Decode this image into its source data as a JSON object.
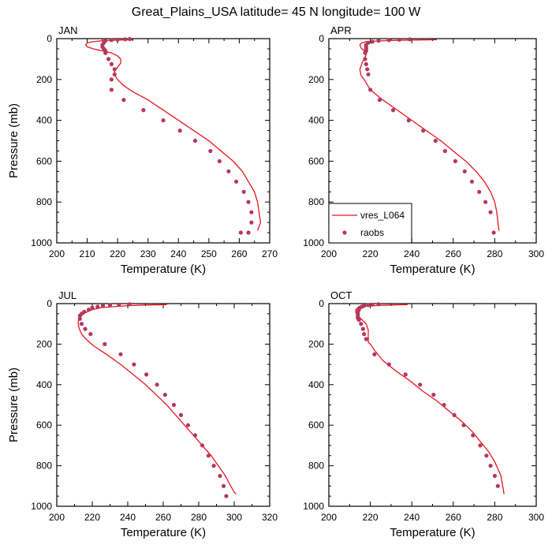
{
  "title": "Great_Plains_USA  latitude= 45 N longitude= 100 W",
  "colors": {
    "model": "#e8161c",
    "obs": "#b5385f",
    "axis": "#000000"
  },
  "legend": {
    "model_label": "vres_L064",
    "obs_label": "raobs"
  },
  "chart_data": [
    {
      "type": "line",
      "panel": "JAN",
      "xlabel": "Temperature (K)",
      "ylabel": "Pressure (mb)",
      "xlim": [
        200,
        270
      ],
      "ylim": [
        0,
        1000
      ],
      "y_inverted": false,
      "xticks": [
        200,
        210,
        220,
        230,
        240,
        250,
        260,
        270
      ],
      "yticks": [
        0,
        200,
        400,
        600,
        800,
        1000
      ],
      "series": [
        {
          "name": "vres_L064",
          "kind": "line",
          "x": [
            225,
            220,
            215,
            212,
            210,
            209.5,
            210,
            212,
            215,
            218,
            220,
            221,
            221,
            220,
            219,
            219,
            220,
            222,
            225,
            230,
            235,
            240,
            245,
            250,
            254,
            258,
            261,
            263,
            265,
            266,
            266.5,
            267,
            266
          ],
          "y": [
            5,
            7,
            10,
            15,
            20,
            30,
            40,
            50,
            60,
            70,
            85,
            100,
            120,
            140,
            160,
            180,
            200,
            230,
            260,
            300,
            350,
            400,
            450,
            500,
            550,
            600,
            650,
            700,
            750,
            800,
            850,
            900,
            940
          ]
        },
        {
          "name": "raobs",
          "kind": "scatter",
          "x": [
            224,
            222.5,
            220,
            218,
            216,
            215.5,
            215,
            215,
            215.5,
            216,
            216,
            217,
            218,
            219,
            219,
            218,
            218,
            222,
            228.5,
            235,
            240.5,
            245.5,
            250.5,
            253.5,
            256.5,
            259,
            261.5,
            263,
            264,
            264,
            263,
            260.5
          ],
          "y": [
            2,
            3,
            5,
            7,
            10,
            20,
            30,
            40,
            50,
            60,
            70,
            100,
            125,
            150,
            175,
            200,
            250,
            300,
            350,
            400,
            450,
            500,
            550,
            600,
            650,
            700,
            750,
            800,
            850,
            900,
            950,
            950
          ]
        }
      ]
    },
    {
      "type": "line",
      "panel": "APR",
      "xlabel": "Temperature (K)",
      "ylabel": "",
      "xlim": [
        200,
        300
      ],
      "ylim": [
        0,
        1000
      ],
      "xticks": [
        200,
        220,
        240,
        260,
        280,
        300
      ],
      "yticks": [
        0,
        200,
        400,
        600,
        800,
        1000
      ],
      "show_legend": true,
      "series": [
        {
          "name": "vres_L064",
          "kind": "line",
          "x": [
            252,
            240,
            230,
            222,
            218,
            216,
            215,
            215.5,
            217,
            218,
            217,
            216,
            215,
            215.5,
            217,
            220,
            226,
            233,
            240,
            247,
            254,
            260,
            266,
            271,
            275,
            278,
            280,
            281,
            282
          ],
          "y": [
            5,
            7,
            9,
            12,
            15,
            20,
            30,
            45,
            60,
            80,
            100,
            120,
            150,
            180,
            200,
            250,
            300,
            350,
            400,
            450,
            500,
            550,
            600,
            650,
            700,
            750,
            800,
            850,
            940
          ]
        },
        {
          "name": "raobs",
          "kind": "scatter",
          "x": [
            239,
            234,
            229,
            224,
            221,
            219,
            218,
            218,
            218,
            218,
            217.5,
            217.5,
            218,
            218.5,
            219,
            220,
            224.5,
            231,
            238.5,
            245.5,
            251.5,
            256,
            261,
            265.5,
            269,
            272.5,
            275.5,
            278,
            279.5
          ],
          "y": [
            3,
            5,
            7,
            10,
            15,
            20,
            30,
            40,
            50,
            60,
            70,
            100,
            125,
            150,
            175,
            250,
            300,
            350,
            400,
            450,
            500,
            550,
            600,
            650,
            700,
            750,
            800,
            850,
            950
          ]
        }
      ]
    },
    {
      "type": "line",
      "panel": "JUL",
      "xlabel": "Temperature (K)",
      "ylabel": "Pressure (mb)",
      "xlim": [
        200,
        320
      ],
      "ylim": [
        0,
        1000
      ],
      "xticks": [
        200,
        220,
        240,
        260,
        280,
        300,
        320
      ],
      "yticks": [
        0,
        200,
        400,
        600,
        800,
        1000
      ],
      "series": [
        {
          "name": "vres_L064",
          "kind": "line",
          "x": [
            262,
            250,
            240,
            232,
            225,
            220,
            216,
            213,
            212,
            212.5,
            214,
            217,
            221,
            228,
            236,
            243,
            250,
            256,
            262,
            267,
            272,
            277,
            282,
            287,
            291,
            295,
            298,
            300,
            301
          ],
          "y": [
            5,
            7,
            10,
            15,
            20,
            30,
            45,
            65,
            90,
            120,
            150,
            180,
            210,
            250,
            300,
            350,
            400,
            450,
            500,
            550,
            600,
            650,
            700,
            750,
            800,
            850,
            900,
            930,
            940
          ]
        },
        {
          "name": "raobs",
          "kind": "scatter",
          "x": [
            241,
            235,
            230,
            226,
            223,
            220,
            218,
            215.5,
            214,
            213,
            213,
            214,
            216,
            219,
            227,
            236,
            243.5,
            250.5,
            256.5,
            261,
            266,
            270,
            274,
            278,
            282,
            285.5,
            288.5,
            292,
            294,
            295.5
          ],
          "y": [
            3,
            5,
            7,
            10,
            15,
            20,
            30,
            40,
            50,
            60,
            75,
            100,
            125,
            150,
            200,
            250,
            300,
            350,
            400,
            450,
            500,
            550,
            600,
            650,
            700,
            750,
            800,
            850,
            900,
            950
          ]
        }
      ]
    },
    {
      "type": "line",
      "panel": "OCT",
      "xlabel": "Temperature (K)",
      "ylabel": "",
      "xlim": [
        200,
        300
      ],
      "ylim": [
        0,
        1000
      ],
      "xticks": [
        200,
        220,
        240,
        260,
        280,
        300
      ],
      "yticks": [
        0,
        200,
        400,
        600,
        800,
        1000
      ],
      "series": [
        {
          "name": "vres_L064",
          "kind": "line",
          "x": [
            238,
            230,
            224,
            219,
            216,
            214,
            213,
            213,
            214,
            216,
            218,
            219,
            219,
            219,
            220,
            222,
            226,
            232,
            239,
            245,
            252,
            258,
            264,
            269,
            273,
            277,
            280,
            283,
            284.5
          ],
          "y": [
            5,
            7,
            9,
            12,
            15,
            20,
            30,
            45,
            60,
            80,
            100,
            130,
            160,
            190,
            200,
            230,
            280,
            330,
            380,
            430,
            480,
            530,
            580,
            630,
            680,
            730,
            780,
            850,
            940
          ]
        },
        {
          "name": "raobs",
          "kind": "scatter",
          "x": [
            224,
            221,
            219,
            217,
            216,
            215,
            214.5,
            214,
            214,
            214,
            214,
            214.5,
            215.5,
            216.5,
            217,
            218,
            222,
            229,
            237,
            244,
            250.5,
            255.5,
            260.5,
            265,
            269.5,
            273,
            276,
            278,
            280,
            281.5
          ],
          "y": [
            3,
            5,
            7,
            10,
            15,
            20,
            30,
            40,
            50,
            60,
            70,
            80,
            100,
            125,
            150,
            175,
            250,
            300,
            350,
            400,
            450,
            500,
            550,
            600,
            650,
            700,
            750,
            800,
            850,
            900
          ]
        }
      ]
    }
  ]
}
